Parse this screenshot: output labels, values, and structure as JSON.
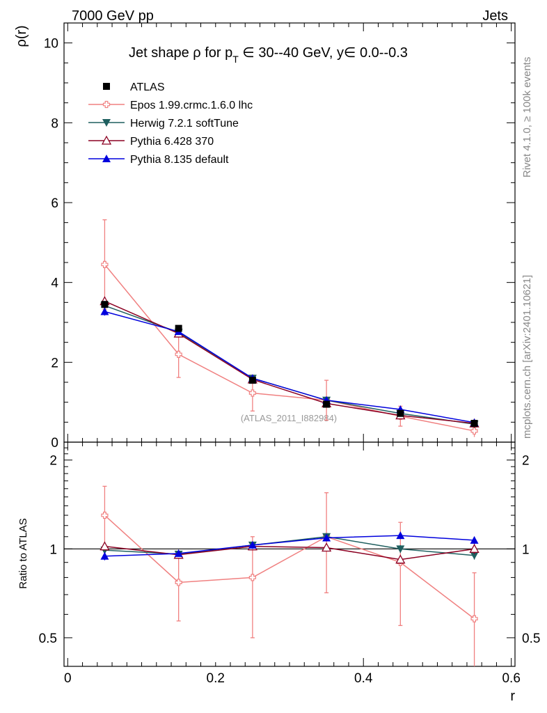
{
  "header": {
    "left": "7000 GeV pp",
    "right": "Jets"
  },
  "side_labels": {
    "rivet": "Rivet 4.1.0, ≥ 100k events",
    "mcplots": "mcplots.cern.ch [arXiv:2401.10621]"
  },
  "watermark": "(ATLAS_2011_I882984)",
  "chart_data": [
    {
      "type": "line",
      "panel": "main",
      "title_parts": {
        "prefix": "Jet shape ρ for p",
        "sub": "T",
        "suffix": " ∈ 30--40 GeV, y∈ 0.0--0.3"
      },
      "ylabel": "ρ(r)",
      "xlabel": "",
      "xlim": [
        -0.005,
        0.605
      ],
      "ylim": [
        0,
        10.5
      ],
      "yticks": [
        0,
        2,
        4,
        6,
        8,
        10
      ],
      "ytick_labels": [
        "0",
        "2",
        "4",
        "6",
        "8",
        "10"
      ],
      "x": [
        0.05,
        0.15,
        0.25,
        0.35,
        0.45,
        0.55
      ],
      "series": [
        {
          "name": "ATLAS",
          "color": "#000000",
          "marker": "square",
          "values": [
            3.45,
            2.85,
            1.55,
            0.95,
            0.72,
            0.47
          ],
          "errors": [
            0.07,
            0.06,
            0.04,
            0.04,
            0.03,
            0.03
          ]
        },
        {
          "name": "Epos 1.99.crmc.1.6.0 lhc",
          "color": "#f08080",
          "marker": "cross-open",
          "values": [
            4.45,
            2.2,
            1.23,
            1.05,
            0.65,
            0.28
          ],
          "errors": [
            1.12,
            0.58,
            0.45,
            0.5,
            0.25,
            0.15
          ]
        },
        {
          "name": "Herwig 7.2.1 softTune",
          "color": "#1f5f5f",
          "marker": "triangle-down",
          "values": [
            3.42,
            2.75,
            1.6,
            1.05,
            0.72,
            0.45
          ],
          "errors": [
            0.05,
            0.04,
            0.03,
            0.03,
            0.02,
            0.02
          ]
        },
        {
          "name": "Pythia 6.428 370",
          "color": "#8b0022",
          "marker": "triangle-open",
          "values": [
            3.53,
            2.72,
            1.57,
            0.97,
            0.67,
            0.47
          ],
          "errors": [
            0.05,
            0.04,
            0.03,
            0.03,
            0.02,
            0.02
          ]
        },
        {
          "name": "Pythia 8.135 default",
          "color": "#0000dd",
          "marker": "triangle",
          "values": [
            3.27,
            2.77,
            1.6,
            1.05,
            0.82,
            0.49
          ],
          "errors": [
            0.1,
            0.06,
            0.04,
            0.03,
            0.03,
            0.02
          ]
        }
      ]
    },
    {
      "type": "line",
      "panel": "ratio",
      "ylabel": "Ratio to ATLAS",
      "xlabel": "r",
      "xlim": [
        -0.005,
        0.605
      ],
      "ylim": [
        0.4,
        2.3
      ],
      "log_y": true,
      "yticks": [
        0.5,
        1,
        2
      ],
      "ytick_labels": [
        "0.5",
        "1",
        "2"
      ],
      "xticks": [
        0,
        0.2,
        0.4,
        0.6
      ],
      "xtick_labels": [
        "0",
        "0.2",
        "0.4",
        "0.6"
      ],
      "x": [
        0.05,
        0.15,
        0.25,
        0.35,
        0.45,
        0.55
      ],
      "series": [
        {
          "name": "Epos 1.99.crmc.1.6.0 lhc",
          "color": "#f08080",
          "marker": "cross-open",
          "values": [
            1.3,
            0.77,
            0.8,
            1.1,
            0.9,
            0.58
          ],
          "err_low": [
            0.31,
            0.2,
            0.3,
            0.39,
            0.35,
            0.26
          ],
          "err_high": [
            0.33,
            0.2,
            0.3,
            0.45,
            0.33,
            0.25
          ]
        },
        {
          "name": "Herwig 7.2.1 softTune",
          "color": "#1f5f5f",
          "marker": "triangle-down",
          "values": [
            0.99,
            0.96,
            1.03,
            1.1,
            1.0,
            0.95
          ],
          "err_low": [
            0.02,
            0.02,
            0.02,
            0.03,
            0.03,
            0.03
          ],
          "err_high": [
            0.02,
            0.02,
            0.02,
            0.03,
            0.03,
            0.03
          ]
        },
        {
          "name": "Pythia 6.428 370",
          "color": "#8b0022",
          "marker": "triangle-open",
          "values": [
            1.02,
            0.955,
            1.02,
            1.01,
            0.92,
            1.0
          ],
          "err_low": [
            0.02,
            0.02,
            0.02,
            0.03,
            0.03,
            0.04
          ],
          "err_high": [
            0.02,
            0.02,
            0.02,
            0.03,
            0.03,
            0.04
          ]
        },
        {
          "name": "Pythia 8.135 default",
          "color": "#0000dd",
          "marker": "triangle",
          "values": [
            0.945,
            0.965,
            1.03,
            1.09,
            1.11,
            1.07
          ],
          "err_low": [
            0.03,
            0.02,
            0.03,
            0.03,
            0.03,
            0.03
          ],
          "err_high": [
            0.03,
            0.02,
            0.03,
            0.03,
            0.03,
            0.03
          ]
        }
      ]
    }
  ]
}
